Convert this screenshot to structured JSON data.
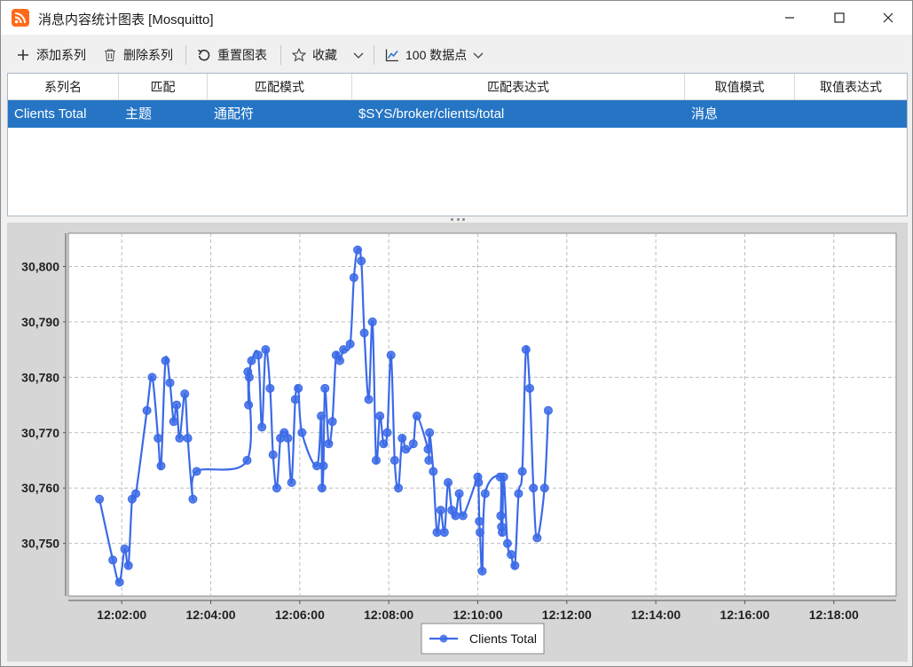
{
  "window": {
    "title": "消息内容统计图表 [Mosquitto]"
  },
  "toolbar": {
    "add_series": "添加系列",
    "delete_series": "删除系列",
    "reset_chart": "重置图表",
    "favorites": "收藏",
    "data_points": "100 数据点"
  },
  "table": {
    "headers": [
      "系列名",
      "匹配",
      "匹配模式",
      "匹配表达式",
      "取值模式",
      "取值表达式"
    ],
    "rows": [
      {
        "name": "Clients Total",
        "match": "主题",
        "mode": "通配符",
        "expression": "$SYS/broker/clients/total",
        "value_mode": "消息",
        "value_expression": ""
      }
    ]
  },
  "colors": {
    "accent": "#2675c5",
    "series": "#3b6ae8",
    "app_icon": "#ff6a1a"
  },
  "icons": [
    "rss-icon",
    "minimize-icon",
    "maximize-icon",
    "close-icon",
    "plus-icon",
    "trash-icon",
    "reset-icon",
    "star-icon",
    "chevron-down-icon",
    "line-chart-icon"
  ],
  "chart_data": {
    "type": "line",
    "title": "",
    "xlabel": "",
    "ylabel": "",
    "x_type": "time",
    "xlim": [
      "12:00:48",
      "12:19:24"
    ],
    "ylim": [
      30740.5,
      30806
    ],
    "x_ticks": [
      "12:02:00",
      "12:04:00",
      "12:06:00",
      "12:08:00",
      "12:10:00",
      "12:12:00",
      "12:14:00",
      "12:16:00",
      "12:18:00"
    ],
    "y_ticks": [
      30750,
      30760,
      30770,
      30780,
      30790,
      30800
    ],
    "y_tick_labels": [
      "30,750",
      "30,760",
      "30,770",
      "30,780",
      "30,790",
      "30,800"
    ],
    "grid": true,
    "legend_position": "bottom-center",
    "series": [
      {
        "name": "Clients Total",
        "color": "#3b6ae8",
        "points": [
          [
            "12:01:30",
            30758
          ],
          [
            "12:01:48",
            30747
          ],
          [
            "12:01:57",
            30743
          ],
          [
            "12:02:04",
            30749
          ],
          [
            "12:02:09",
            30746
          ],
          [
            "12:02:14",
            30758
          ],
          [
            "12:02:19",
            30759
          ],
          [
            "12:02:34",
            30774
          ],
          [
            "12:02:41",
            30780
          ],
          [
            "12:02:49",
            30769
          ],
          [
            "12:02:53",
            30764
          ],
          [
            "12:02:59",
            30783
          ],
          [
            "12:03:05",
            30779
          ],
          [
            "12:03:10",
            30772
          ],
          [
            "12:03:14",
            30775
          ],
          [
            "12:03:18",
            30769
          ],
          [
            "12:03:25",
            30777
          ],
          [
            "12:03:29",
            30769
          ],
          [
            "12:03:36",
            30758
          ],
          [
            "12:03:41",
            30763
          ],
          [
            "12:04:49",
            30765
          ],
          [
            "12:04:50",
            30781
          ],
          [
            "12:04:51",
            30775
          ],
          [
            "12:04:52",
            30780
          ],
          [
            "12:04:55",
            30783
          ],
          [
            "12:05:04",
            30784
          ],
          [
            "12:05:09",
            30771
          ],
          [
            "12:05:14",
            30785
          ],
          [
            "12:05:20",
            30778
          ],
          [
            "12:05:24",
            30766
          ],
          [
            "12:05:29",
            30760
          ],
          [
            "12:05:34",
            30769
          ],
          [
            "12:05:39",
            30770
          ],
          [
            "12:05:44",
            30769
          ],
          [
            "12:05:49",
            30761
          ],
          [
            "12:05:54",
            30776
          ],
          [
            "12:05:58",
            30778
          ],
          [
            "12:06:03",
            30770
          ],
          [
            "12:06:23",
            30764
          ],
          [
            "12:06:29",
            30773
          ],
          [
            "12:06:30",
            30760
          ],
          [
            "12:06:32",
            30764
          ],
          [
            "12:06:34",
            30778
          ],
          [
            "12:06:39",
            30768
          ],
          [
            "12:06:44",
            30772
          ],
          [
            "12:06:49",
            30784
          ],
          [
            "12:06:54",
            30783
          ],
          [
            "12:06:59",
            30785
          ],
          [
            "12:07:08",
            30786
          ],
          [
            "12:07:13",
            30798
          ],
          [
            "12:07:18",
            30803
          ],
          [
            "12:07:23",
            30801
          ],
          [
            "12:07:27",
            30788
          ],
          [
            "12:07:33",
            30776
          ],
          [
            "12:07:38",
            30790
          ],
          [
            "12:07:43",
            30765
          ],
          [
            "12:07:48",
            30773
          ],
          [
            "12:07:53",
            30768
          ],
          [
            "12:07:58",
            30770
          ],
          [
            "12:08:03",
            30784
          ],
          [
            "12:08:08",
            30765
          ],
          [
            "12:08:13",
            30760
          ],
          [
            "12:08:18",
            30769
          ],
          [
            "12:08:23",
            30767
          ],
          [
            "12:08:33",
            30768
          ],
          [
            "12:08:38",
            30773
          ],
          [
            "12:08:53",
            30767
          ],
          [
            "12:08:54",
            30765
          ],
          [
            "12:08:55",
            30770
          ],
          [
            "12:09:00",
            30763
          ],
          [
            "12:09:05",
            30752
          ],
          [
            "12:09:10",
            30756
          ],
          [
            "12:09:15",
            30752
          ],
          [
            "12:09:20",
            30761
          ],
          [
            "12:09:25",
            30756
          ],
          [
            "12:09:30",
            30755
          ],
          [
            "12:09:35",
            30759
          ],
          [
            "12:09:40",
            30755
          ],
          [
            "12:10:00",
            30762
          ],
          [
            "12:10:01",
            30761
          ],
          [
            "12:10:02",
            30754
          ],
          [
            "12:10:03",
            30752
          ],
          [
            "12:10:06",
            30745
          ],
          [
            "12:10:10",
            30759
          ],
          [
            "12:10:30",
            30762
          ],
          [
            "12:10:31",
            30755
          ],
          [
            "12:10:32",
            30753
          ],
          [
            "12:10:33",
            30752
          ],
          [
            "12:10:35",
            30762
          ],
          [
            "12:10:40",
            30750
          ],
          [
            "12:10:45",
            30748
          ],
          [
            "12:10:50",
            30746
          ],
          [
            "12:10:55",
            30759
          ],
          [
            "12:11:00",
            30763
          ],
          [
            "12:11:05",
            30785
          ],
          [
            "12:11:10",
            30778
          ],
          [
            "12:11:15",
            30760
          ],
          [
            "12:11:20",
            30751
          ],
          [
            "12:11:30",
            30760
          ],
          [
            "12:11:35",
            30774
          ]
        ]
      }
    ]
  }
}
